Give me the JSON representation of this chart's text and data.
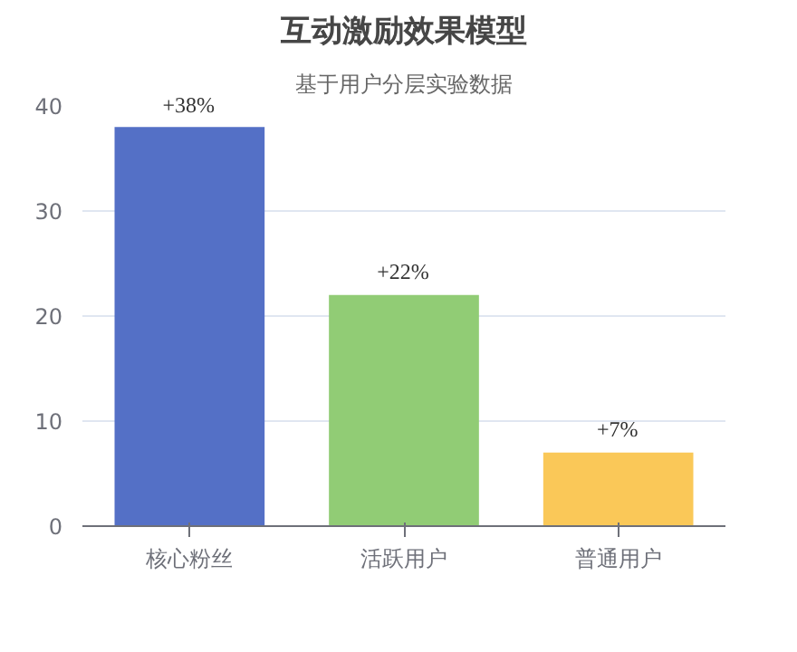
{
  "chart_data": {
    "type": "bar",
    "title": "互动激励效果模型",
    "subtitle": "基于用户分层实验数据",
    "categories": [
      "核心粉丝",
      "活跃用户",
      "普通用户"
    ],
    "values": [
      38,
      22,
      7
    ],
    "colors": [
      "#5470c6",
      "#91cc75",
      "#fac858"
    ],
    "value_labels": [
      "+38%",
      "+22%",
      "+7%"
    ],
    "ylim": [
      0,
      40
    ],
    "yticks": [
      0,
      10,
      20,
      30,
      40
    ],
    "grid": "y"
  }
}
